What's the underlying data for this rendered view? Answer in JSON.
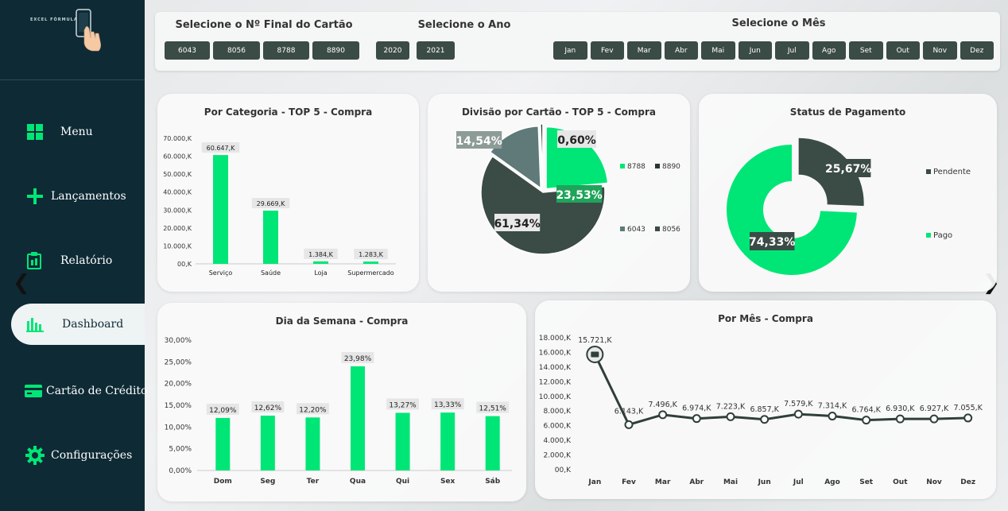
{
  "sidebar": {
    "logo_text": "EXCEL FÓRMULA",
    "items": [
      {
        "label": "Menu",
        "icon": "grid-icon"
      },
      {
        "label": "Lançamentos",
        "icon": "plus-icon"
      },
      {
        "label": "Relatório",
        "icon": "clipboard-icon"
      },
      {
        "label": "Dashboard",
        "icon": "bar-chart-icon",
        "active": true
      },
      {
        "label": "Cartão de Crédito",
        "icon": "credit-card-icon"
      },
      {
        "label": "Configurações",
        "icon": "gear-icon"
      }
    ],
    "prev_arrow": "❮",
    "next_arrow": "❯"
  },
  "filters": {
    "card_title": "Selecione o Nº Final do Cartão",
    "cards": [
      "6043",
      "8056",
      "8788",
      "8890"
    ],
    "year_title": "Selecione o Ano",
    "years": [
      "2020",
      "2021"
    ],
    "month_title": "Selecione o Mês",
    "months": [
      "Jan",
      "Fev",
      "Mar",
      "Abr",
      "Mai",
      "Jun",
      "Jul",
      "Ago",
      "Set",
      "Out",
      "Nov",
      "Dez"
    ]
  },
  "colors": {
    "sidebar_bg": "#0e2a35",
    "green": "#00e676",
    "dark_green": "#3b4b46",
    "gray_green": "#5f7a78",
    "line": "#2f3f3a"
  },
  "chart_data": [
    {
      "type": "bar",
      "title": "Por Categoria - TOP 5 - Compra",
      "categories": [
        "Serviço",
        "Saúde",
        "Loja",
        "Supermercado"
      ],
      "values": [
        60647,
        29669,
        1384,
        1283
      ],
      "labels": [
        "60.647,K",
        "29.669,K",
        "1.384,K",
        "1.283,K"
      ],
      "ylim": [
        0,
        70000
      ],
      "yticks": [
        "00,K",
        "10.000,K",
        "20.000,K",
        "30.000,K",
        "40.000,K",
        "50.000,K",
        "60.000,K",
        "70.000,K"
      ]
    },
    {
      "type": "pie",
      "title": "Divisão por Cartão - TOP 5 - Compra",
      "slices": [
        {
          "name": "8788",
          "value": 23.53,
          "label": "23,53%",
          "color": "#00e676"
        },
        {
          "name": "8056",
          "value": 61.34,
          "label": "61,34%",
          "color": "#3b4b46"
        },
        {
          "name": "6043",
          "value": 14.54,
          "label": "14,54%",
          "color": "#5f7a78"
        },
        {
          "name": "8890",
          "value": 0.6,
          "label": "0,60%",
          "color": "#2a3531"
        }
      ],
      "legend": [
        "8788",
        "8890",
        "6043",
        "8056"
      ]
    },
    {
      "type": "pie",
      "title": "Status de Pagamento",
      "slices": [
        {
          "name": "Pendente",
          "value": 25.67,
          "label": "25,67%",
          "color": "#3b4b46"
        },
        {
          "name": "Pago",
          "value": 74.33,
          "label": "74,33%",
          "color": "#00e676"
        }
      ],
      "legend": [
        "Pendente",
        "Pago"
      ]
    },
    {
      "type": "bar",
      "title": "Dia da Semana - Compra",
      "categories": [
        "Dom",
        "Seg",
        "Ter",
        "Qua",
        "Qui",
        "Sex",
        "Sáb"
      ],
      "values": [
        12.09,
        12.62,
        12.2,
        23.98,
        13.27,
        13.33,
        12.51
      ],
      "labels": [
        "12,09%",
        "12,62%",
        "12,20%",
        "23,98%",
        "13,27%",
        "13,33%",
        "12,51%"
      ],
      "ylim": [
        0,
        30
      ],
      "yticks": [
        "0,00%",
        "5,00%",
        "10,00%",
        "15,00%",
        "20,00%",
        "25,00%",
        "30,00%"
      ]
    },
    {
      "type": "line",
      "title": "Por Mês - Compra",
      "categories": [
        "Jan",
        "Fev",
        "Mar",
        "Abr",
        "Mai",
        "Jun",
        "Jul",
        "Ago",
        "Set",
        "Out",
        "Nov",
        "Dez"
      ],
      "values": [
        15721,
        6143,
        7496,
        6974,
        7223,
        6857,
        7579,
        7314,
        6764,
        6930,
        6927,
        7055
      ],
      "labels": [
        "15.721,K",
        "6.143,K",
        "7.496,K",
        "6.974,K",
        "7.223,K",
        "6.857,K",
        "7.579,K",
        "7.314,K",
        "6.764,K",
        "6.930,K",
        "6.927,K",
        "7.055,K"
      ],
      "ylim": [
        0,
        18000
      ],
      "yticks": [
        "00,K",
        "2.000,K",
        "4.000,K",
        "6.000,K",
        "8.000,K",
        "10.000,K",
        "12.000,K",
        "14.000,K",
        "16.000,K",
        "18.000,K"
      ]
    }
  ]
}
